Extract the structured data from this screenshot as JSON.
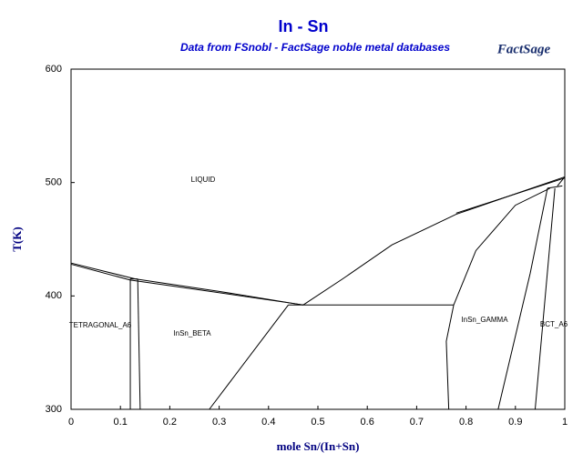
{
  "chart_data": {
    "type": "line",
    "title": "In - Sn",
    "subtitle": "Data from FSnobl - FactSage noble metal databases",
    "logo": "FactSage",
    "x_label": "mole Sn/(In+Sn)",
    "y_label": "T(K)",
    "xlim": [
      0,
      1
    ],
    "ylim": [
      300,
      600
    ],
    "xticks": [
      0,
      0.1,
      0.2,
      0.3,
      0.4,
      0.5,
      0.6,
      0.7,
      0.8,
      0.9,
      1
    ],
    "yticks": [
      300,
      400,
      500,
      600
    ],
    "color": "#000000",
    "annotations": [
      "LIQUID",
      "TETRAGONAL_A6",
      "InSn_BETA",
      "InSn_GAMMA",
      "BCT_A6"
    ],
    "series": [
      {
        "x": [
          0,
          0.13,
          0.3,
          0.47
        ],
        "values": [
          429,
          415,
          404,
          392
        ]
      },
      {
        "x": [
          0,
          0.12,
          0.25,
          0.44,
          0.47
        ],
        "values": [
          428,
          414,
          406,
          394,
          392
        ]
      },
      {
        "x": [
          0.44,
          0.775
        ],
        "values": [
          392,
          392
        ]
      },
      {
        "x": [
          0.47,
          0.55,
          0.65,
          0.78,
          0.9,
          1
        ],
        "values": [
          392,
          415,
          445,
          472,
          490,
          505
        ]
      },
      {
        "x": [
          0.78,
          1
        ],
        "values": [
          473,
          504
        ]
      },
      {
        "x": [
          0.775,
          0.76,
          0.765
        ],
        "values": [
          392,
          360,
          300
        ]
      },
      {
        "x": [
          0.775,
          0.82,
          0.9,
          0.97
        ],
        "values": [
          392,
          440,
          480,
          495
        ]
      },
      {
        "x": [
          0.865,
          0.93,
          0.965
        ],
        "values": [
          300,
          420,
          495
        ]
      },
      {
        "x": [
          0.94,
          0.98
        ],
        "values": [
          300,
          495
        ]
      },
      {
        "x": [
          0.965,
          0.995
        ],
        "values": [
          495,
          497
        ]
      },
      {
        "x": [
          1,
          0.985
        ],
        "values": [
          505,
          497
        ]
      },
      {
        "x": [
          0.12,
          0.12
        ],
        "values": [
          415,
          300
        ]
      },
      {
        "x": [
          0.135,
          0.14
        ],
        "values": [
          415,
          300
        ]
      },
      {
        "x": [
          0.12,
          0.135
        ],
        "values": [
          415,
          415
        ]
      },
      {
        "x": [
          0.44,
          0.28
        ],
        "values": [
          392,
          300
        ]
      }
    ]
  }
}
